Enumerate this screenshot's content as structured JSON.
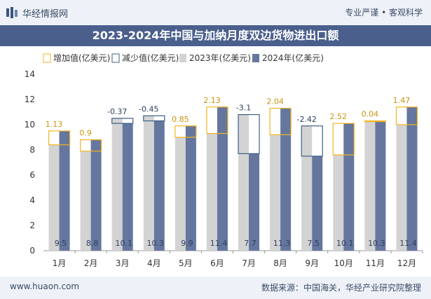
{
  "header": {
    "brand": "华经情报网",
    "tagline": "专业严谨 • 客观科学"
  },
  "footer": {
    "website": "www.huaon.com",
    "source": "数据来源：中国海关，华经产业研究院整理"
  },
  "colors": {
    "bar_2023": "#d3d3d3",
    "bar_2024": "#65779f",
    "increase": "#f2b61f",
    "decrease": "#3d5f8a",
    "title_bg": "#4a5f8c",
    "value_label": "#2f3f5f"
  },
  "chart_data": {
    "type": "bar",
    "title": "2023-2024年中国与加纳月度双边货物进出口额",
    "categories": [
      "1月",
      "2月",
      "3月",
      "4月",
      "5月",
      "6月",
      "7月",
      "8月",
      "9月",
      "10月",
      "11月",
      "12月"
    ],
    "series": [
      {
        "name": "2023年(亿美元)",
        "values": [
          8.4,
          7.9,
          10.5,
          10.7,
          9.0,
          9.3,
          10.8,
          9.2,
          9.9,
          7.6,
          10.3,
          10.0
        ]
      },
      {
        "name": "2024年(亿美元)",
        "values": [
          9.5,
          8.8,
          10.1,
          10.3,
          9.9,
          11.4,
          7.7,
          11.3,
          7.5,
          10.1,
          10.3,
          11.4
        ]
      }
    ],
    "change_labels": [
      "1.13",
      "0.9",
      "-0.37",
      "-0.45",
      "0.85",
      "2.13",
      "-3.1",
      "2.04",
      "-2.42",
      "2.52",
      "0.04",
      "1.47"
    ],
    "value_labels_2024": [
      "9.5",
      "8.8",
      "10.1",
      "10.3",
      "9.9",
      "11.4",
      "7.7",
      "11.3",
      "7.5",
      "10.1",
      "10.3",
      "11.4"
    ],
    "legend": [
      "增加值(亿美元)",
      "减少值(亿美元)",
      "2023年(亿美元)",
      "2024年(亿美元)"
    ],
    "legend_position": "top-left",
    "yticks": [
      "0",
      "2",
      "4",
      "6",
      "8",
      "10",
      "12",
      "14"
    ],
    "ylim": [
      0,
      14
    ],
    "xlabel": "",
    "ylabel": "",
    "grid": false
  }
}
